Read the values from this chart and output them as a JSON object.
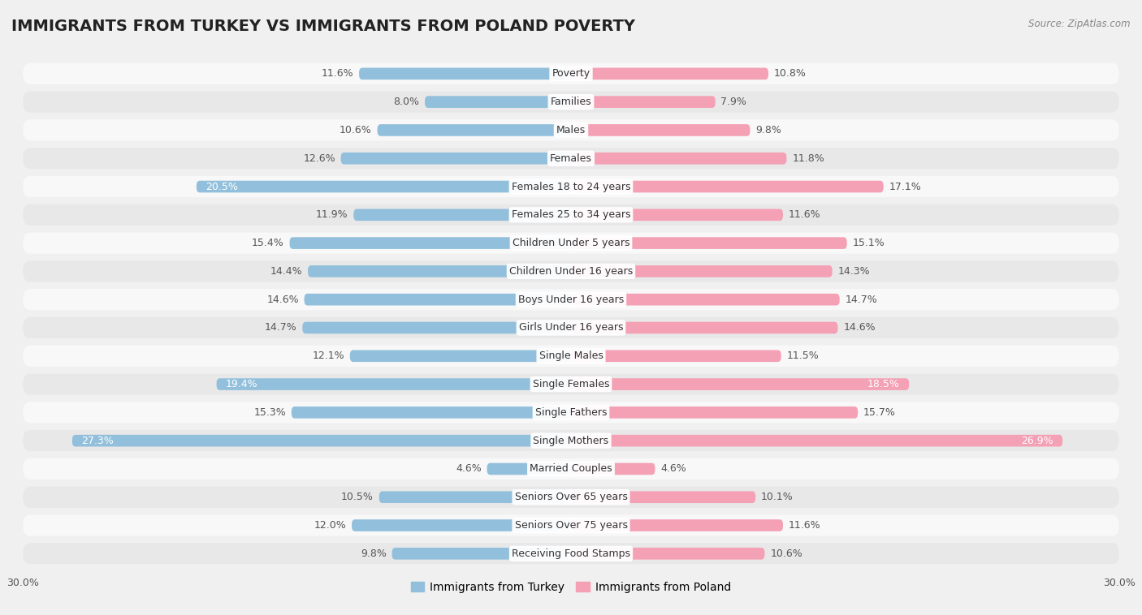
{
  "title": "IMMIGRANTS FROM TURKEY VS IMMIGRANTS FROM POLAND POVERTY",
  "source": "Source: ZipAtlas.com",
  "categories": [
    "Poverty",
    "Families",
    "Males",
    "Females",
    "Females 18 to 24 years",
    "Females 25 to 34 years",
    "Children Under 5 years",
    "Children Under 16 years",
    "Boys Under 16 years",
    "Girls Under 16 years",
    "Single Males",
    "Single Females",
    "Single Fathers",
    "Single Mothers",
    "Married Couples",
    "Seniors Over 65 years",
    "Seniors Over 75 years",
    "Receiving Food Stamps"
  ],
  "turkey_values": [
    11.6,
    8.0,
    10.6,
    12.6,
    20.5,
    11.9,
    15.4,
    14.4,
    14.6,
    14.7,
    12.1,
    19.4,
    15.3,
    27.3,
    4.6,
    10.5,
    12.0,
    9.8
  ],
  "poland_values": [
    10.8,
    7.9,
    9.8,
    11.8,
    17.1,
    11.6,
    15.1,
    14.3,
    14.7,
    14.6,
    11.5,
    18.5,
    15.7,
    26.9,
    4.6,
    10.1,
    11.6,
    10.6
  ],
  "turkey_color": "#92C0DC",
  "poland_color": "#F4A0B5",
  "turkey_label": "Immigrants from Turkey",
  "poland_label": "Immigrants from Poland",
  "background_color": "#f0f0f0",
  "row_color_even": "#f8f8f8",
  "row_color_odd": "#e8e8e8",
  "axis_max": 30.0,
  "title_fontsize": 14,
  "label_fontsize": 9,
  "value_fontsize": 9
}
